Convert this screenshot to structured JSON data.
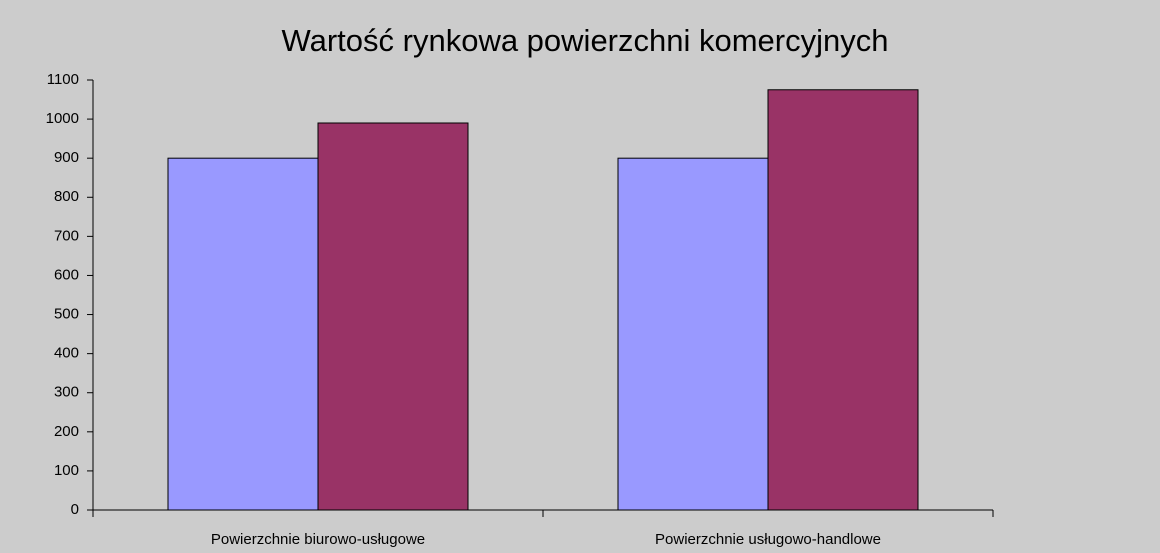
{
  "chart_data": {
    "type": "bar",
    "title": "Wartość rynkowa powierzchni komercyjnych",
    "categories": [
      "Powierzchnie biurowo-usługowe",
      "Powierzchnie usługowo-handlowe"
    ],
    "series": [
      {
        "color": "#9999ff",
        "values": [
          900,
          900
        ]
      },
      {
        "color": "#993366",
        "values": [
          990,
          1075
        ]
      }
    ],
    "ylim": [
      0,
      1100
    ],
    "yticks": [
      0,
      100,
      200,
      300,
      400,
      500,
      600,
      700,
      800,
      900,
      1000,
      1100
    ],
    "grid": false
  }
}
